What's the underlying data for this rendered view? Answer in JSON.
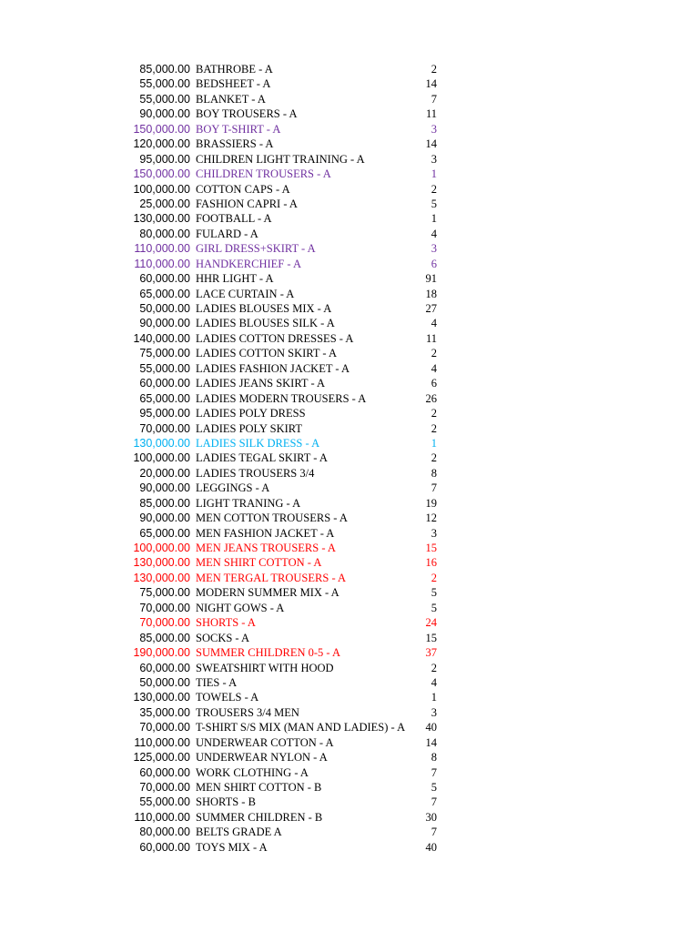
{
  "colors": {
    "default": "#000000",
    "purple": "#7030a0",
    "cyan": "#00b0f0",
    "red": "#ff0000"
  },
  "rows": [
    {
      "price": "85,000.00",
      "desc": "BATHROBE - A",
      "qty": "2",
      "color": "default"
    },
    {
      "price": "55,000.00",
      "desc": "BEDSHEET - A",
      "qty": "14",
      "color": "default"
    },
    {
      "price": "55,000.00",
      "desc": "BLANKET - A",
      "qty": "7",
      "color": "default"
    },
    {
      "price": "90,000.00",
      "desc": "BOY TROUSERS - A",
      "qty": "11",
      "color": "default"
    },
    {
      "price": "150,000.00",
      "desc": "BOY T-SHIRT - A",
      "qty": "3",
      "color": "purple"
    },
    {
      "price": "120,000.00",
      "desc": "BRASSIERS - A",
      "qty": "14",
      "color": "default"
    },
    {
      "price": "95,000.00",
      "desc": "CHILDREN LIGHT TRAINING - A",
      "qty": "3",
      "color": "default"
    },
    {
      "price": "150,000.00",
      "desc": "CHILDREN TROUSERS - A",
      "qty": "1",
      "color": "purple"
    },
    {
      "price": "100,000.00",
      "desc": "COTTON CAPS - A",
      "qty": "2",
      "color": "default"
    },
    {
      "price": "25,000.00",
      "desc": "FASHION CAPRI - A",
      "qty": "5",
      "color": "default"
    },
    {
      "price": "130,000.00",
      "desc": "FOOTBALL - A",
      "qty": "1",
      "color": "default"
    },
    {
      "price": "80,000.00",
      "desc": "FULARD - A",
      "qty": "4",
      "color": "default"
    },
    {
      "price": "110,000.00",
      "desc": "GIRL DRESS+SKIRT - A",
      "qty": "3",
      "color": "purple"
    },
    {
      "price": "110,000.00",
      "desc": "HANDKERCHIEF - A",
      "qty": "6",
      "color": "purple"
    },
    {
      "price": "60,000.00",
      "desc": "HHR LIGHT - A",
      "qty": "91",
      "color": "default"
    },
    {
      "price": "65,000.00",
      "desc": "LACE CURTAIN - A",
      "qty": "18",
      "color": "default"
    },
    {
      "price": "50,000.00",
      "desc": "LADIES BLOUSES MIX - A",
      "qty": "27",
      "color": "default"
    },
    {
      "price": "90,000.00",
      "desc": "LADIES BLOUSES SILK - A",
      "qty": "4",
      "color": "default"
    },
    {
      "price": "140,000.00",
      "desc": "LADIES COTTON DRESSES - A",
      "qty": "11",
      "color": "default"
    },
    {
      "price": "75,000.00",
      "desc": "LADIES COTTON SKIRT - A",
      "qty": "2",
      "color": "default"
    },
    {
      "price": "55,000.00",
      "desc": "LADIES FASHION JACKET - A",
      "qty": "4",
      "color": "default"
    },
    {
      "price": "60,000.00",
      "desc": "LADIES JEANS SKIRT - A",
      "qty": "6",
      "color": "default"
    },
    {
      "price": "65,000.00",
      "desc": "LADIES MODERN TROUSERS - A",
      "qty": "26",
      "color": "default"
    },
    {
      "price": "95,000.00",
      "desc": "LADIES POLY DRESS",
      "qty": "2",
      "color": "default"
    },
    {
      "price": "70,000.00",
      "desc": "LADIES POLY SKIRT",
      "qty": "2",
      "color": "default"
    },
    {
      "price": "130,000.00",
      "desc": "LADIES SILK DRESS - A",
      "qty": "1",
      "color": "cyan"
    },
    {
      "price": "100,000.00",
      "desc": "LADIES TEGAL SKIRT - A",
      "qty": "2",
      "color": "default"
    },
    {
      "price": "20,000.00",
      "desc": "LADIES TROUSERS 3/4",
      "qty": "8",
      "color": "default"
    },
    {
      "price": "90,000.00",
      "desc": "LEGGINGS - A",
      "qty": "7",
      "color": "default"
    },
    {
      "price": "85,000.00",
      "desc": "LIGHT TRANING - A",
      "qty": "19",
      "color": "default"
    },
    {
      "price": "90,000.00",
      "desc": "MEN COTTON TROUSERS - A",
      "qty": "12",
      "color": "default"
    },
    {
      "price": "65,000.00",
      "desc": "MEN FASHION JACKET - A",
      "qty": "3",
      "color": "default"
    },
    {
      "price": "100,000.00",
      "desc": "MEN JEANS TROUSERS  - A",
      "qty": "15",
      "color": "red"
    },
    {
      "price": "130,000.00",
      "desc": "MEN SHIRT COTTON - A",
      "qty": "16",
      "color": "red"
    },
    {
      "price": "130,000.00",
      "desc": "MEN TERGAL TROUSERS - A",
      "qty": "2",
      "color": "red"
    },
    {
      "price": "75,000.00",
      "desc": "MODERN SUMMER MIX - A",
      "qty": "5",
      "color": "default"
    },
    {
      "price": "70,000.00",
      "desc": "NIGHT GOWS - A",
      "qty": "5",
      "color": "default"
    },
    {
      "price": "70,000.00",
      "desc": "SHORTS  - A",
      "qty": "24",
      "color": "red"
    },
    {
      "price": "85,000.00",
      "desc": "SOCKS - A",
      "qty": "15",
      "color": "default"
    },
    {
      "price": "190,000.00",
      "desc": "SUMMER CHILDREN 0-5 - A",
      "qty": "37",
      "color": "red"
    },
    {
      "price": "60,000.00",
      "desc": "SWEATSHIRT   WITH HOOD",
      "qty": "2",
      "color": "default"
    },
    {
      "price": "50,000.00",
      "desc": "TIES - A",
      "qty": "4",
      "color": "default"
    },
    {
      "price": "130,000.00",
      "desc": "TOWELS - A",
      "qty": "1",
      "color": "default"
    },
    {
      "price": "35,000.00",
      "desc": "TROUSERS 3/4 MEN",
      "qty": "3",
      "color": "default"
    },
    {
      "price": "70,000.00",
      "desc": "T-SHIRT S/S MIX (MAN AND LADIES) - A",
      "qty": "40",
      "color": "default"
    },
    {
      "price": "110,000.00",
      "desc": "UNDERWEAR COTTON - A",
      "qty": "14",
      "color": "default"
    },
    {
      "price": "125,000.00",
      "desc": "UNDERWEAR NYLON - A",
      "qty": "8",
      "color": "default"
    },
    {
      "price": "60,000.00",
      "desc": "WORK CLOTHING - A",
      "qty": "7",
      "color": "default"
    },
    {
      "price": "70,000.00",
      "desc": "MEN SHIRT COTTON - B",
      "qty": "5",
      "color": "default"
    },
    {
      "price": "55,000.00",
      "desc": "SHORTS - B",
      "qty": "7",
      "color": "default"
    },
    {
      "price": "110,000.00",
      "desc": "SUMMER CHILDREN - B",
      "qty": "30",
      "color": "default"
    },
    {
      "price": "80,000.00",
      "desc": "BELTS GRADE A",
      "qty": "7",
      "color": "default"
    },
    {
      "price": "60,000.00",
      "desc": "TOYS MIX - A",
      "qty": "40",
      "color": "default"
    }
  ]
}
